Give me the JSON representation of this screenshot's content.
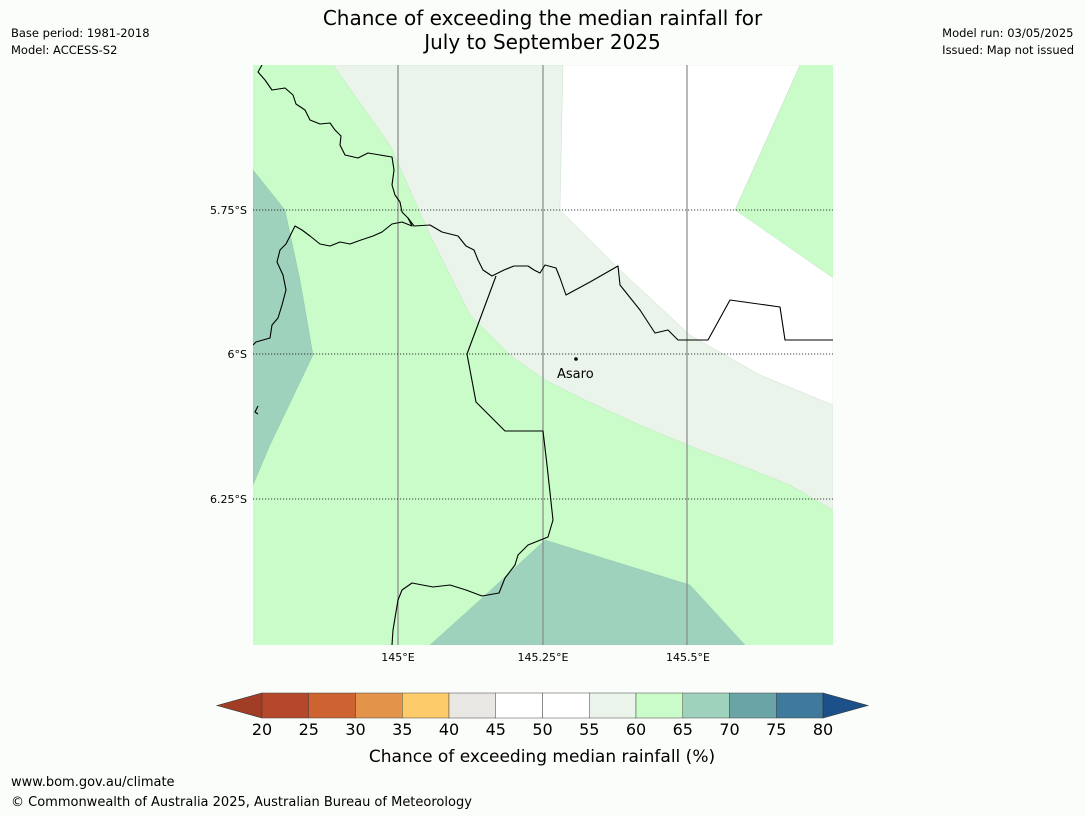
{
  "header": {
    "base_period": "Base period: 1981-2018",
    "model": "Model: ACCESS-S2",
    "title_line1": "Chance of exceeding the median rainfall for",
    "title_line2": "July to September 2025",
    "model_run": "Model run: 03/05/2025",
    "issued": "Issued: Map not issued"
  },
  "map": {
    "lat_labels": [
      "5.75°S",
      "6°S",
      "6.25°S"
    ],
    "lon_labels": [
      "145°E",
      "145.25°E",
      "145.5°E"
    ],
    "place": "Asaro",
    "class_colors": {
      "c45_50": "#ffffff",
      "c55_60": "#eaf4ea",
      "c60_65": "#c9fcc9",
      "c65_70": "#9fd2bc"
    },
    "coastline_color": "#000000",
    "grid_color": "#888888"
  },
  "legend": {
    "ticks": [
      "20",
      "25",
      "30",
      "35",
      "40",
      "45",
      "50",
      "55",
      "60",
      "65",
      "70",
      "75",
      "80"
    ],
    "colors": [
      "#a13d25",
      "#b5472a",
      "#cc6330",
      "#e3944a",
      "#fdcb69",
      "#e8e7e3",
      "#ffffff",
      "#ffffff",
      "#eaf4ea",
      "#c9fcc9",
      "#9fd2bc",
      "#6ba4a6",
      "#3f7a9c",
      "#1b5088"
    ],
    "label": "Chance of exceeding median rainfall (%)"
  },
  "footer": {
    "url": "www.bom.gov.au/climate",
    "copyright": "© Commonwealth of Australia 2025, Australian Bureau of Meteorology"
  }
}
